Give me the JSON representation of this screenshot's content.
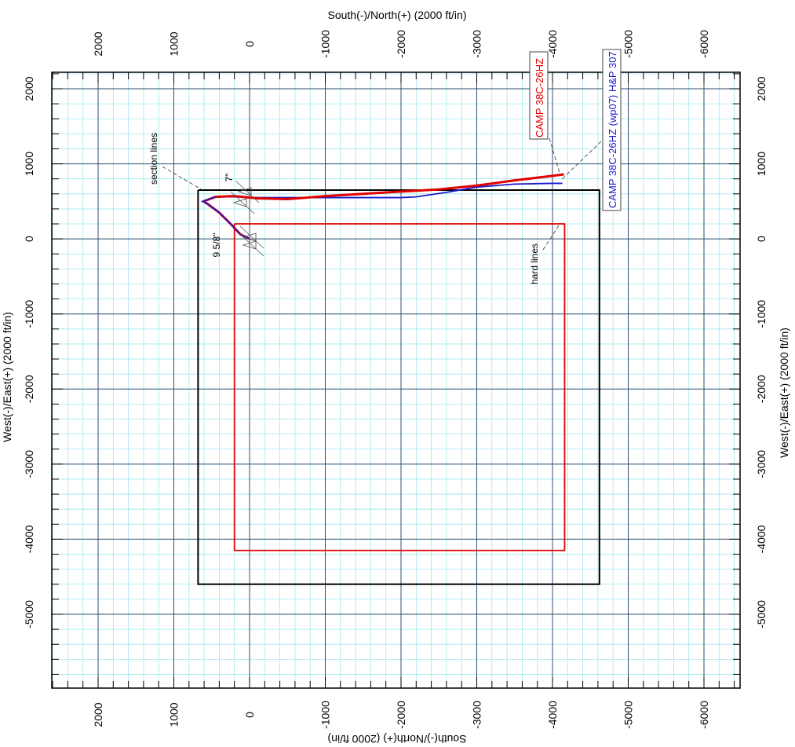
{
  "chart_data": {
    "type": "line",
    "title": "",
    "x_axis_title": "South(-)/North(+) (2000 ft/in)",
    "y_axis_title": "West(-)/East(+) (2000 ft/in)",
    "x_ticks": [
      2000,
      1000,
      0,
      -1000,
      -2000,
      -3000,
      -4000,
      -5000,
      -6000
    ],
    "x_tick_labels": [
      "2000",
      "1000",
      "0",
      "-1000",
      "-2000",
      "-3000",
      "-4000",
      "-5000",
      "-6000"
    ],
    "y_ticks": [
      2000,
      1000,
      0,
      -1000,
      -2000,
      -3000,
      -4000,
      -5000
    ],
    "y_tick_labels": [
      "2000",
      "1000",
      "0",
      "-1000",
      "-2000",
      "-3000",
      "-4000",
      "-5000"
    ],
    "xlim": [
      2600,
      -6600
    ],
    "ylim": [
      -6000,
      2200
    ],
    "grid": true,
    "colors": {
      "major_grid": "#2f4f6f",
      "minor_grid": "#9ee8ee",
      "section_lines": "#000000",
      "hard_lines": "#e00000",
      "actual_wellpath": "#e00000",
      "plan_wellpath": "#1a1ad0",
      "casing_markers": "#555555"
    },
    "section_lines": [
      [
        680,
        650
      ],
      [
        -4620,
        650
      ],
      [
        -4620,
        -4600
      ],
      [
        680,
        -4600
      ],
      [
        680,
        650
      ]
    ],
    "hard_lines": [
      [
        200,
        200
      ],
      [
        -4160,
        200
      ],
      [
        -4160,
        -4150
      ],
      [
        200,
        -4150
      ],
      [
        200,
        200
      ]
    ],
    "series": [
      {
        "name": "CAMP 38C-26HZ",
        "color": "#e00000",
        "points": [
          [
            0,
            0
          ],
          [
            120,
            60
          ],
          [
            250,
            200
          ],
          [
            400,
            350
          ],
          [
            560,
            470
          ],
          [
            610,
            500
          ],
          [
            450,
            560
          ],
          [
            200,
            570
          ],
          [
            -100,
            540
          ],
          [
            -500,
            530
          ],
          [
            -1000,
            570
          ],
          [
            -1500,
            600
          ],
          [
            -2000,
            630
          ],
          [
            -2500,
            660
          ],
          [
            -3000,
            710
          ],
          [
            -3500,
            780
          ],
          [
            -4000,
            840
          ],
          [
            -4150,
            860
          ]
        ]
      },
      {
        "name": "CAMP 38C-26HZ (wp07) H&P 307",
        "color": "#1a1ad0",
        "points": [
          [
            0,
            0
          ],
          [
            120,
            60
          ],
          [
            250,
            200
          ],
          [
            400,
            350
          ],
          [
            560,
            470
          ],
          [
            620,
            500
          ],
          [
            450,
            560
          ],
          [
            200,
            560
          ],
          [
            -100,
            550
          ],
          [
            -500,
            550
          ],
          [
            -1000,
            550
          ],
          [
            -1500,
            550
          ],
          [
            -2000,
            550
          ],
          [
            -2200,
            560
          ],
          [
            -2600,
            620
          ],
          [
            -3000,
            690
          ],
          [
            -3500,
            730
          ],
          [
            -4000,
            740
          ],
          [
            -4130,
            740
          ]
        ]
      }
    ],
    "casing_labels": [
      "7\"",
      "9 5/8\""
    ],
    "annotations": [
      "section lines",
      "hard lines"
    ],
    "legend_labels": [
      "CAMP 38C-26HZ",
      "CAMP 38C-26HZ (wp07) H&P 307"
    ]
  }
}
